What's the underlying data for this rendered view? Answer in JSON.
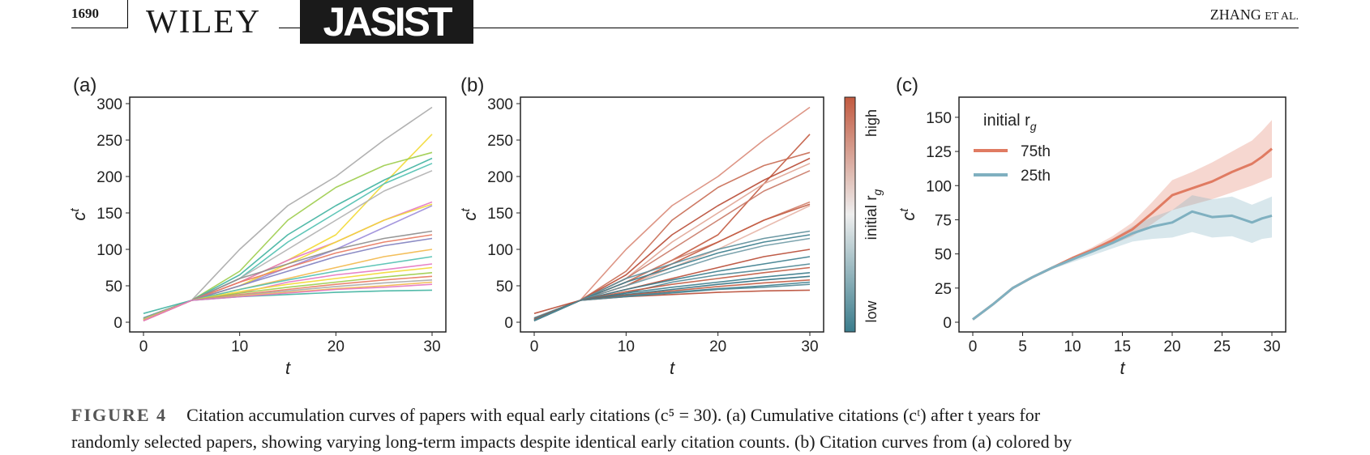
{
  "header": {
    "page_number": "1690",
    "publisher": "WILEY",
    "journal": "JASIST",
    "authors": "ZHANG",
    "authors_suffix": "ET AL."
  },
  "figure": {
    "panels": [
      {
        "label": "(a)"
      },
      {
        "label": "(b)"
      },
      {
        "label": "(c)"
      }
    ],
    "colorbar": {
      "title": "initial r",
      "title_sub": "g",
      "high": "high",
      "low": "low",
      "high_color": "#c25a40",
      "low_color": "#3a7c8c"
    },
    "caption": {
      "label": "FIGURE 4",
      "line1": "Citation accumulation curves of papers with equal early citations (c⁵ = 30). (a) Cumulative citations (cᵗ) after t years for",
      "line2": "randomly selected papers, showing varying long-term impacts despite identical early citation counts. (b) Citation curves from (a) colored by"
    }
  },
  "chart_data": [
    {
      "panel": "(a)",
      "type": "line",
      "xlabel": "t",
      "ylabel": "c",
      "ylabel_sup": "t",
      "xlim": [
        0,
        30
      ],
      "ylim": [
        0,
        300
      ],
      "xticks": [
        0,
        10,
        20,
        30
      ],
      "yticks": [
        0,
        50,
        100,
        150,
        200,
        250,
        300
      ],
      "grid": false,
      "x": [
        0,
        5,
        10,
        15,
        20,
        25,
        30
      ],
      "series": [
        {
          "color": "#a9a9a9",
          "values": [
            5,
            30,
            100,
            160,
            200,
            250,
            295
          ]
        },
        {
          "color": "#f2d933",
          "values": [
            3,
            30,
            55,
            85,
            120,
            190,
            258
          ]
        },
        {
          "color": "#9ccc4a",
          "values": [
            4,
            30,
            70,
            140,
            185,
            215,
            233
          ]
        },
        {
          "color": "#3fb3a0",
          "values": [
            6,
            30,
            65,
            120,
            160,
            195,
            225
          ]
        },
        {
          "color": "#4fc0b0",
          "values": [
            2,
            30,
            60,
            110,
            150,
            190,
            218
          ]
        },
        {
          "color": "#b0b0b0",
          "values": [
            3,
            30,
            60,
            100,
            140,
            180,
            208
          ]
        },
        {
          "color": "#e377c2",
          "values": [
            2,
            30,
            55,
            85,
            110,
            140,
            165
          ]
        },
        {
          "color": "#9b8cd9",
          "values": [
            4,
            30,
            50,
            75,
            100,
            130,
            160
          ]
        },
        {
          "color": "#f2d933",
          "values": [
            3,
            30,
            50,
            80,
            110,
            140,
            162
          ]
        },
        {
          "color": "#8c8c8c",
          "values": [
            5,
            30,
            60,
            80,
            100,
            115,
            125
          ]
        },
        {
          "color": "#e8795f",
          "values": [
            2,
            30,
            55,
            75,
            95,
            110,
            120
          ]
        },
        {
          "color": "#7f7fbf",
          "values": [
            6,
            30,
            50,
            70,
            90,
            105,
            115
          ]
        },
        {
          "color": "#f2b84a",
          "values": [
            3,
            30,
            45,
            60,
            75,
            90,
            100
          ]
        },
        {
          "color": "#4fc0b0",
          "values": [
            4,
            30,
            45,
            58,
            70,
            80,
            90
          ]
        },
        {
          "color": "#e377c2",
          "values": [
            2,
            30,
            40,
            55,
            65,
            72,
            80
          ]
        },
        {
          "color": "#f2d933",
          "values": [
            3,
            30,
            42,
            52,
            60,
            68,
            75
          ]
        },
        {
          "color": "#9ccc4a",
          "values": [
            5,
            30,
            40,
            48,
            55,
            62,
            68
          ]
        },
        {
          "color": "#e8795f",
          "values": [
            2,
            30,
            38,
            45,
            52,
            58,
            63
          ]
        },
        {
          "color": "#a9a9a9",
          "values": [
            4,
            30,
            37,
            43,
            49,
            54,
            58
          ]
        },
        {
          "color": "#f2b84a",
          "values": [
            3,
            30,
            36,
            41,
            46,
            50,
            55
          ]
        },
        {
          "color": "#3fb3a0",
          "values": [
            12,
            30,
            35,
            38,
            41,
            43,
            44
          ]
        },
        {
          "color": "#e377c2",
          "values": [
            2,
            30,
            35,
            40,
            45,
            48,
            52
          ]
        }
      ]
    },
    {
      "panel": "(b)",
      "type": "line",
      "xlabel": "t",
      "ylabel": "c",
      "ylabel_sup": "t",
      "xlim": [
        0,
        30
      ],
      "ylim": [
        0,
        300
      ],
      "xticks": [
        0,
        10,
        20,
        30
      ],
      "yticks": [
        0,
        50,
        100,
        150,
        200,
        250,
        300
      ],
      "grid": false,
      "x": [
        0,
        5,
        10,
        15,
        20,
        25,
        30
      ],
      "series": [
        {
          "color": "#d98a78",
          "values": [
            5,
            30,
            100,
            160,
            200,
            250,
            295
          ]
        },
        {
          "color": "#c25a40",
          "values": [
            3,
            30,
            55,
            85,
            120,
            190,
            258
          ]
        },
        {
          "color": "#c86a52",
          "values": [
            4,
            30,
            70,
            140,
            185,
            215,
            233
          ]
        },
        {
          "color": "#b84a34",
          "values": [
            6,
            30,
            65,
            120,
            160,
            195,
            225
          ]
        },
        {
          "color": "#e0a493",
          "values": [
            2,
            30,
            60,
            110,
            150,
            190,
            218
          ]
        },
        {
          "color": "#c97865",
          "values": [
            3,
            30,
            60,
            100,
            140,
            180,
            208
          ]
        },
        {
          "color": "#cf7d68",
          "values": [
            2,
            30,
            55,
            85,
            110,
            140,
            165
          ]
        },
        {
          "color": "#e6b4a6",
          "values": [
            4,
            30,
            50,
            75,
            100,
            130,
            160
          ]
        },
        {
          "color": "#c25a40",
          "values": [
            3,
            30,
            50,
            80,
            110,
            140,
            162
          ]
        },
        {
          "color": "#5b8d99",
          "values": [
            5,
            30,
            60,
            80,
            100,
            115,
            125
          ]
        },
        {
          "color": "#3a7c8c",
          "values": [
            2,
            30,
            55,
            75,
            95,
            110,
            120
          ]
        },
        {
          "color": "#6f9aa5",
          "values": [
            6,
            30,
            50,
            70,
            90,
            105,
            115
          ]
        },
        {
          "color": "#b84a34",
          "values": [
            3,
            30,
            45,
            60,
            75,
            90,
            100
          ]
        },
        {
          "color": "#3a7c8c",
          "values": [
            4,
            30,
            45,
            58,
            70,
            80,
            90
          ]
        },
        {
          "color": "#4f8795",
          "values": [
            2,
            30,
            40,
            55,
            65,
            72,
            80
          ]
        },
        {
          "color": "#c25a40",
          "values": [
            3,
            30,
            42,
            52,
            60,
            68,
            75
          ]
        },
        {
          "color": "#3a7c8c",
          "values": [
            5,
            30,
            40,
            48,
            55,
            62,
            68
          ]
        },
        {
          "color": "#2f6f80",
          "values": [
            2,
            30,
            38,
            45,
            52,
            58,
            63
          ]
        },
        {
          "color": "#c25a40",
          "values": [
            4,
            30,
            37,
            43,
            49,
            54,
            58
          ]
        },
        {
          "color": "#3a7c8c",
          "values": [
            3,
            30,
            36,
            41,
            46,
            50,
            55
          ]
        },
        {
          "color": "#b84a34",
          "values": [
            12,
            30,
            35,
            38,
            41,
            43,
            44
          ]
        },
        {
          "color": "#4f8795",
          "values": [
            2,
            30,
            35,
            40,
            45,
            48,
            52
          ]
        }
      ]
    },
    {
      "panel": "(c)",
      "type": "area",
      "xlabel": "t",
      "ylabel": "c",
      "ylabel_sup": "t",
      "xlim": [
        0,
        30
      ],
      "ylim": [
        0,
        160
      ],
      "xticks": [
        0,
        5,
        10,
        15,
        20,
        25,
        30
      ],
      "yticks": [
        0,
        25,
        50,
        75,
        100,
        125,
        150
      ],
      "grid": false,
      "legend_title": "initial r",
      "legend_title_sub": "g",
      "legend_position": "top-left",
      "x": [
        0,
        2,
        4,
        6,
        8,
        10,
        12,
        14,
        16,
        18,
        20,
        22,
        24,
        26,
        28,
        29,
        30
      ],
      "series": [
        {
          "name": "75th",
          "color": "#e07b62",
          "values": [
            2,
            13,
            25,
            33,
            40,
            47,
            53,
            60,
            68,
            80,
            93,
            98,
            103,
            110,
            116,
            121,
            127
          ],
          "lower": [
            2,
            12,
            24,
            32,
            39,
            45,
            51,
            57,
            63,
            72,
            82,
            86,
            90,
            95,
            100,
            103,
            106
          ],
          "upper": [
            3,
            14,
            26,
            34,
            41,
            48,
            55,
            63,
            73,
            88,
            104,
            110,
            117,
            125,
            133,
            140,
            148
          ]
        },
        {
          "name": "25th",
          "color": "#7fb0c0",
          "values": [
            2,
            13,
            25,
            33,
            40,
            46,
            52,
            58,
            65,
            70,
            73,
            81,
            77,
            78,
            73,
            76,
            78
          ],
          "lower": [
            2,
            12,
            24,
            32,
            39,
            44,
            49,
            54,
            59,
            61,
            62,
            66,
            62,
            63,
            58,
            61,
            62
          ],
          "upper": [
            3,
            14,
            26,
            34,
            41,
            47,
            54,
            61,
            70,
            77,
            82,
            93,
            90,
            92,
            86,
            89,
            92
          ]
        }
      ]
    }
  ]
}
